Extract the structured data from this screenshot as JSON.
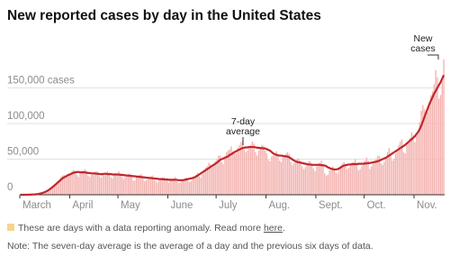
{
  "chart_data": {
    "type": "bar-line",
    "title": "New reported cases by day in the United States",
    "categories": [
      "March",
      null,
      null,
      null,
      null,
      null,
      null,
      null,
      null,
      null,
      null,
      null,
      null,
      null,
      null,
      null,
      null,
      null,
      null,
      null,
      null,
      null,
      null,
      null,
      null,
      null,
      null,
      null,
      null,
      null,
      null,
      "April",
      null,
      null,
      null,
      null,
      null,
      null,
      null,
      null,
      null,
      null,
      null,
      null,
      null,
      null,
      null,
      null,
      null,
      null,
      null,
      null,
      null,
      null,
      null,
      null,
      null,
      null,
      null,
      null,
      null,
      "May",
      null,
      null,
      null,
      null,
      null,
      null,
      null,
      null,
      null,
      null,
      null,
      null,
      null,
      null,
      null,
      null,
      null,
      null,
      null,
      null,
      null,
      null,
      null,
      null,
      null,
      null,
      null,
      null,
      null,
      null,
      "June",
      null,
      null,
      null,
      null,
      null,
      null,
      null,
      null,
      null,
      null,
      null,
      null,
      null,
      null,
      null,
      null,
      null,
      null,
      null,
      null,
      null,
      null,
      null,
      null,
      null,
      null,
      null,
      null,
      null,
      "July",
      null,
      null,
      null,
      null,
      null,
      null,
      null,
      null,
      null,
      null,
      null,
      null,
      null,
      null,
      null,
      null,
      null,
      null,
      null,
      null,
      null,
      null,
      null,
      null,
      null,
      null,
      null,
      null,
      null,
      null,
      "Aug.",
      null,
      null,
      null,
      null,
      null,
      null,
      null,
      null,
      null,
      null,
      null,
      null,
      null,
      null,
      null,
      null,
      null,
      null,
      null,
      null,
      null,
      null,
      null,
      null,
      null,
      null,
      null,
      null,
      null,
      null,
      "Sept.",
      null,
      null,
      null,
      null,
      null,
      null,
      null,
      null,
      null,
      null,
      null,
      null,
      null,
      null,
      null,
      null,
      null,
      null,
      null,
      null,
      null,
      null,
      null,
      null,
      null,
      null,
      null,
      null,
      null,
      "Oct.",
      null,
      null,
      null,
      null,
      null,
      null,
      null,
      null,
      null,
      null,
      null,
      null,
      null,
      null,
      null,
      null,
      null,
      null,
      null,
      null,
      null,
      null,
      null,
      null,
      null,
      null,
      null,
      null,
      null,
      null,
      "Nov.",
      null,
      null,
      null,
      null,
      null,
      null,
      null,
      null,
      null,
      null,
      null,
      null,
      null,
      null,
      null,
      null,
      null,
      null
    ],
    "series": [
      {
        "name": "New cases",
        "color": "#f3b3b0",
        "values": [
          0,
          0,
          0,
          100,
          100,
          200,
          300,
          300,
          400,
          600,
          900,
          1300,
          1800,
          2400,
          2700,
          3800,
          5000,
          7000,
          9000,
          11000,
          12000,
          13000,
          15000,
          19000,
          21000,
          25000,
          27000,
          28000,
          24000,
          26000,
          30000,
          30000,
          33000,
          35000,
          33000,
          28000,
          25000,
          30000,
          33000,
          34000,
          36000,
          33000,
          27000,
          25000,
          28000,
          31000,
          32000,
          33000,
          32000,
          26000,
          24000,
          28000,
          30000,
          31000,
          33000,
          31000,
          25000,
          23000,
          27000,
          30000,
          29000,
          33000,
          28000,
          25000,
          22000,
          25000,
          28000,
          29000,
          30000,
          26000,
          20000,
          20000,
          24000,
          26000,
          28000,
          29000,
          24000,
          19000,
          20000,
          22000,
          25000,
          26000,
          27000,
          21000,
          19000,
          17000,
          20000,
          21000,
          24000,
          25000,
          23000,
          21000,
          17000,
          20000,
          22000,
          22000,
          25000,
          19000,
          17000,
          17000,
          19000,
          21000,
          23000,
          24000,
          20000,
          18000,
          19000,
          23000,
          25000,
          28000,
          31000,
          26000,
          24000,
          29000,
          35000,
          38000,
          40000,
          45000,
          43000,
          38000,
          41000,
          47000,
          50000,
          55000,
          55000,
          46000,
          43000,
          52000,
          60000,
          62000,
          64000,
          68000,
          61000,
          58000,
          58000,
          66000,
          70000,
          74000,
          76000,
          63000,
          60000,
          62000,
          68000,
          70000,
          75000,
          72000,
          60000,
          55000,
          62000,
          66000,
          70000,
          69000,
          62000,
          58000,
          49000,
          47000,
          54000,
          55000,
          58000,
          61000,
          56000,
          48000,
          46000,
          52000,
          56000,
          58000,
          60000,
          57000,
          46000,
          42000,
          45000,
          48000,
          51000,
          50000,
          48000,
          40000,
          36000,
          39000,
          44000,
          47000,
          47000,
          44000,
          37000,
          33000,
          40000,
          44000,
          45000,
          48000,
          42000,
          30000,
          27000,
          28000,
          34000,
          38000,
          40000,
          36000,
          31000,
          30000,
          36000,
          40000,
          44000,
          46000,
          40000,
          36000,
          38000,
          42000,
          45000,
          46000,
          50000,
          42000,
          34000,
          36000,
          40000,
          42000,
          48000,
          52000,
          48000,
          36000,
          40000,
          44000,
          48000,
          51000,
          55000,
          54000,
          44000,
          42000,
          46000,
          52000,
          60000,
          66000,
          56000,
          48000,
          50000,
          58000,
          62000,
          70000,
          75000,
          78000,
          60000,
          58000,
          70000,
          74000,
          80000,
          88000,
          84000,
          74000,
          82000,
          90000,
          102000,
          118000,
          126000,
          120000,
          110000,
          116000,
          130000,
          140000,
          145000,
          155000,
          175000,
          165000,
          135000,
          140000,
          160000,
          190000
        ]
      },
      {
        "name": "7-day average",
        "color": "#c1272d",
        "values": [
          0,
          0,
          0,
          0,
          100,
          100,
          200,
          300,
          400,
          500,
          800,
          1100,
          1600,
          2200,
          2900,
          3800,
          4800,
          6100,
          7600,
          9300,
          11000,
          13000,
          15000,
          17000,
          19000,
          21000,
          23000,
          24500,
          25500,
          27000,
          28000,
          29000,
          30000,
          31000,
          31500,
          32000,
          32000,
          31500,
          31500,
          31500,
          31500,
          31000,
          30500,
          30500,
          30000,
          30000,
          30000,
          29500,
          29500,
          29000,
          29000,
          29000,
          29500,
          29500,
          29000,
          29000,
          29000,
          28500,
          28500,
          28500,
          28500,
          28500,
          28000,
          28000,
          27500,
          27500,
          27000,
          27000,
          26500,
          26500,
          26000,
          26000,
          25500,
          25500,
          25000,
          25000,
          24500,
          24500,
          24000,
          24000,
          23500,
          23500,
          23000,
          23000,
          22500,
          22500,
          22000,
          22000,
          22000,
          21500,
          21500,
          21500,
          21000,
          21000,
          21000,
          21000,
          21000,
          21000,
          20500,
          20500,
          20500,
          20500,
          21000,
          21500,
          22000,
          22500,
          23000,
          23500,
          24500,
          25500,
          27000,
          28500,
          30000,
          31500,
          33000,
          34500,
          36000,
          37500,
          39000,
          40500,
          42000,
          43500,
          45000,
          47000,
          49000,
          50000,
          51000,
          52000,
          53000,
          54000,
          56000,
          57000,
          58500,
          60000,
          61000,
          62500,
          63500,
          64500,
          65500,
          66000,
          66500,
          66500,
          67000,
          67000,
          67000,
          67000,
          66500,
          66000,
          66000,
          65500,
          65500,
          65000,
          65000,
          64000,
          63000,
          62000,
          60000,
          58000,
          57000,
          56000,
          55500,
          55000,
          55000,
          54500,
          54000,
          54000,
          53500,
          52500,
          51000,
          49500,
          48000,
          47000,
          46000,
          45500,
          45000,
          44500,
          44000,
          43500,
          43000,
          42500,
          42500,
          42000,
          42000,
          42000,
          42000,
          42000,
          42000,
          41500,
          41500,
          41000,
          40000,
          38500,
          37500,
          36500,
          36000,
          35500,
          35500,
          36000,
          37000,
          38500,
          40000,
          41000,
          41500,
          42000,
          42500,
          42500,
          43000,
          43000,
          43000,
          43000,
          43500,
          43500,
          43500,
          43500,
          44000,
          44000,
          44500,
          44500,
          45000,
          45500,
          46000,
          46500,
          47000,
          48000,
          49000,
          50000,
          51000,
          52000,
          53500,
          55000,
          56500,
          58000,
          59500,
          61000,
          62500,
          64000,
          65500,
          67000,
          68500,
          70000,
          72000,
          74000,
          76000,
          78000,
          80000,
          82000,
          85000,
          88000,
          92000,
          97000,
          103000,
          109000,
          115000,
          121000,
          127000,
          132000,
          137000,
          142000,
          146000,
          150000,
          154000,
          158000,
          163000,
          168000
        ]
      }
    ],
    "ylim": [
      0,
      200000
    ],
    "yticks": [
      0,
      {
        "value": 50000,
        "label": "50,000"
      },
      {
        "value": 100000,
        "label": "100,000"
      },
      {
        "value": 150000,
        "label": "150,000 cases"
      }
    ],
    "grid": true,
    "anomaly_color": "#f6d48e",
    "anomaly_note": [
      "These are days with a data reporting anomaly. Read more ",
      "here",
      "."
    ],
    "note": "Note: The seven-day average is the average of a day and the previous six days of data."
  }
}
